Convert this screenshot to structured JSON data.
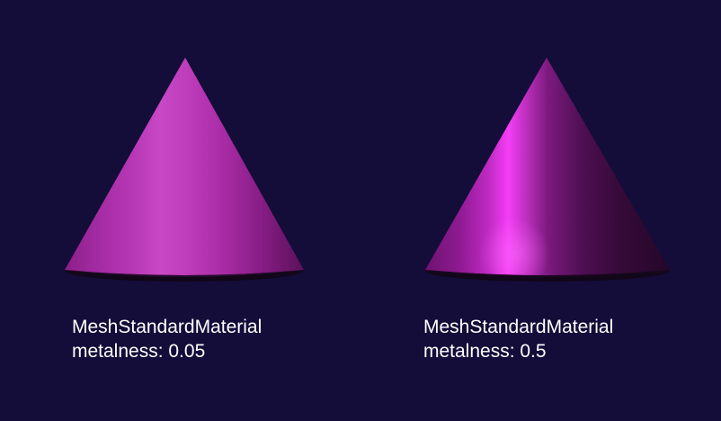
{
  "colors": {
    "background": "#140c39",
    "cone_base": "#c83cc8",
    "caption_text": "#ffffff"
  },
  "panels": [
    {
      "icon": "cone-mesh",
      "material_label": "MeshStandardMaterial",
      "metalness_label": "metalness: 0.05"
    },
    {
      "icon": "cone-mesh",
      "material_label": "MeshStandardMaterial",
      "metalness_label": "metalness: 0.5"
    }
  ]
}
